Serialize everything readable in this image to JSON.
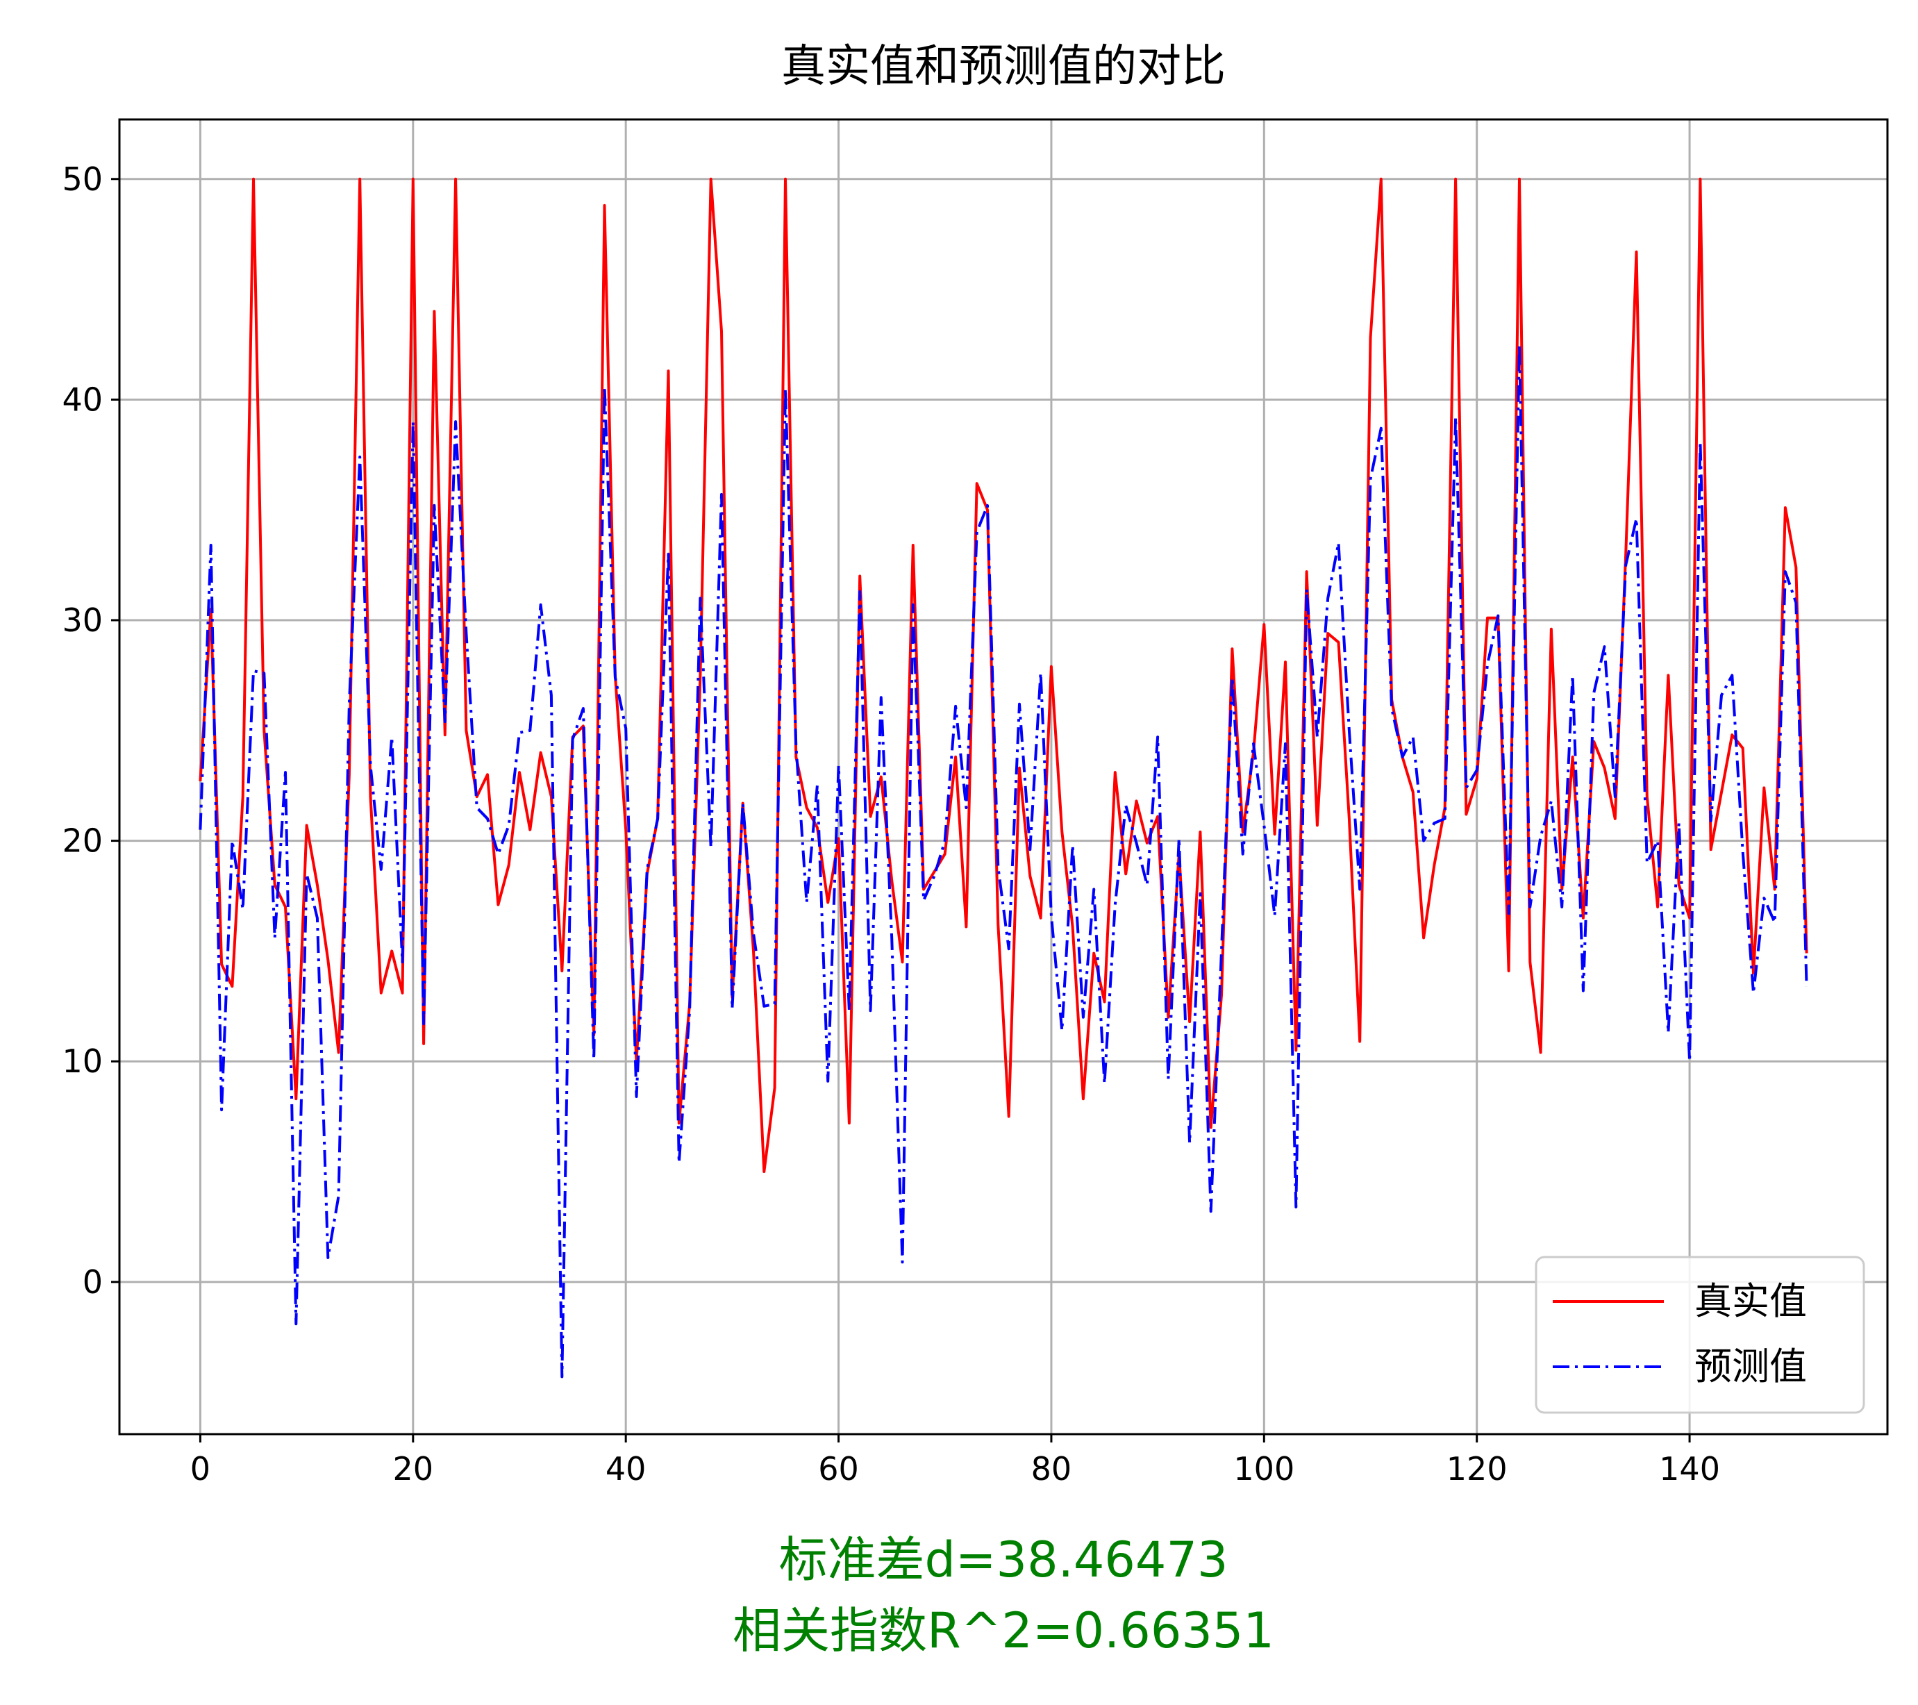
{
  "chart_data": {
    "type": "line",
    "title": "真实值和预测值的对比",
    "xlabel": "",
    "ylabel": "",
    "xlim": [
      -7.6,
      158.6
    ],
    "ylim": [
      -6.9,
      52.7
    ],
    "xticks": [
      0,
      20,
      40,
      60,
      80,
      100,
      120,
      140
    ],
    "yticks": [
      0,
      10,
      20,
      30,
      40,
      50
    ],
    "grid": true,
    "legend_position": "lower-right",
    "series": [
      {
        "name": "真实值",
        "color": "#ff0000",
        "style": "solid",
        "values": [
          22.7,
          30.5,
          14.4,
          13.4,
          22.0,
          50.0,
          25.0,
          18.0,
          17.0,
          8.3,
          20.7,
          18.0,
          14.6,
          10.4,
          23.0,
          50.0,
          22.0,
          13.1,
          15.0,
          13.1,
          50.0,
          10.8,
          44.0,
          24.8,
          50.0,
          25.0,
          22.0,
          23.0,
          17.1,
          18.9,
          23.1,
          20.5,
          24.0,
          22.0,
          14.1,
          24.7,
          25.2,
          11.2,
          48.8,
          27.5,
          20.5,
          10.0,
          18.5,
          21.0,
          41.3,
          7.2,
          12.6,
          27.5,
          50.0,
          43.1,
          12.9,
          21.7,
          15.0,
          5.0,
          8.8,
          50.0,
          23.8,
          21.5,
          20.6,
          17.2,
          20.1,
          7.2,
          32.0,
          21.1,
          22.9,
          18.2,
          14.5,
          33.4,
          17.8,
          18.6,
          19.4,
          23.8,
          16.1,
          36.2,
          35.0,
          16.2,
          7.5,
          23.3,
          18.4,
          16.5,
          27.9,
          20.4,
          16.1,
          8.3,
          14.9,
          12.7,
          23.1,
          18.5,
          21.8,
          19.9,
          21.1,
          12.0,
          19.4,
          11.8,
          20.4,
          7.0,
          13.0,
          28.7,
          20.4,
          24.0,
          29.8,
          20.3,
          28.1,
          10.5,
          32.2,
          20.7,
          29.4,
          29.0,
          21.0,
          10.9,
          42.8,
          50.0,
          26.4,
          23.8,
          22.2,
          15.6,
          18.9,
          21.5,
          50.0,
          21.2,
          22.8,
          30.1,
          30.1,
          14.1,
          50.0,
          14.5,
          10.4,
          29.6,
          17.8,
          23.8,
          16.5,
          24.5,
          23.3,
          21.0,
          33.0,
          46.7,
          22.0,
          17.0,
          27.5,
          18.0,
          16.5,
          50.0,
          19.6,
          22.2,
          24.8,
          24.2,
          14.0,
          22.4,
          17.8,
          35.1,
          32.4,
          14.9
        ]
      },
      {
        "name": "预测值",
        "color": "#0000ff",
        "style": "dashdot",
        "values": [
          20.5,
          33.4,
          7.8,
          20.0,
          16.9,
          27.7,
          27.6,
          15.6,
          23.1,
          -1.9,
          18.5,
          16.5,
          1.1,
          3.9,
          26.2,
          37.4,
          23.4,
          18.7,
          24.7,
          14.5,
          39.0,
          11.7,
          35.2,
          25.4,
          39.0,
          29.4,
          21.5,
          21.0,
          19.4,
          20.7,
          24.9,
          25.0,
          30.7,
          26.6,
          -4.3,
          24.6,
          26.0,
          10.1,
          40.6,
          27.4,
          25.1,
          8.4,
          18.7,
          21.0,
          33.0,
          5.4,
          12.3,
          31.0,
          19.7,
          35.7,
          12.4,
          21.7,
          15.8,
          12.5,
          12.6,
          40.5,
          24.3,
          17.2,
          22.5,
          9.1,
          23.4,
          12.3,
          31.3,
          12.3,
          26.5,
          15.6,
          0.9,
          30.7,
          17.3,
          18.4,
          20.0,
          26.1,
          21.5,
          34.0,
          35.2,
          18.8,
          15.1,
          26.2,
          19.6,
          27.6,
          16.6,
          11.4,
          19.8,
          12.0,
          17.8,
          9.0,
          17.1,
          21.6,
          19.9,
          18.0,
          24.7,
          9.2,
          20.1,
          6.3,
          17.6,
          3.2,
          15.0,
          27.4,
          19.4,
          24.4,
          20.7,
          16.6,
          24.4,
          3.4,
          31.4,
          24.7,
          31.0,
          33.5,
          25.0,
          17.8,
          36.4,
          38.7,
          26.0,
          23.8,
          24.7,
          20.0,
          20.8,
          21.0,
          39.2,
          22.4,
          23.2,
          28.0,
          30.2,
          16.7,
          42.5,
          17.0,
          20.2,
          21.8,
          17.0,
          27.5,
          13.2,
          26.7,
          28.8,
          22.0,
          32.5,
          34.6,
          19.0,
          20.0,
          11.3,
          20.8,
          10.0,
          38.1,
          20.9,
          26.6,
          27.5,
          19.5,
          13.1,
          17.4,
          16.3,
          32.2,
          30.8,
          13.4
        ]
      }
    ],
    "annotations": [
      {
        "text": "标准差d=38.46473",
        "color": "#008000"
      },
      {
        "text": "相关指数R^2=0.66351",
        "color": "#008000"
      }
    ]
  }
}
